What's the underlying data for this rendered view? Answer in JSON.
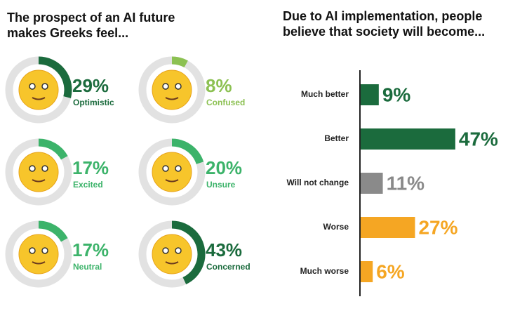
{
  "chart_data": [
    {
      "type": "donut",
      "title": "The prospect of an AI future makes Greeks feel...",
      "categories": [
        "Optimistic",
        "Confused",
        "Excited",
        "Unsure",
        "Neutral",
        "Concerned"
      ],
      "values": [
        29,
        8,
        17,
        20,
        17,
        43
      ],
      "value_labels": [
        "29%",
        "8%",
        "17%",
        "20%",
        "17%",
        "43%"
      ],
      "colors": [
        "#1b6b3d",
        "#8cc152",
        "#3cb36a",
        "#3cb36a",
        "#3cb36a",
        "#1b6b3d"
      ]
    },
    {
      "type": "bar",
      "title": "Due to AI implementation, people believe that society will become...",
      "categories": [
        "Much better",
        "Better",
        "Will not change",
        "Worse",
        "Much worse"
      ],
      "values": [
        9,
        47,
        11,
        27,
        6
      ],
      "value_labels": [
        "9%",
        "47%",
        "11%",
        "27%",
        "6%"
      ],
      "colors": [
        "#1b6b3d",
        "#1b6b3d",
        "#8a8a8a",
        "#f5a623",
        "#f5a623"
      ]
    }
  ]
}
